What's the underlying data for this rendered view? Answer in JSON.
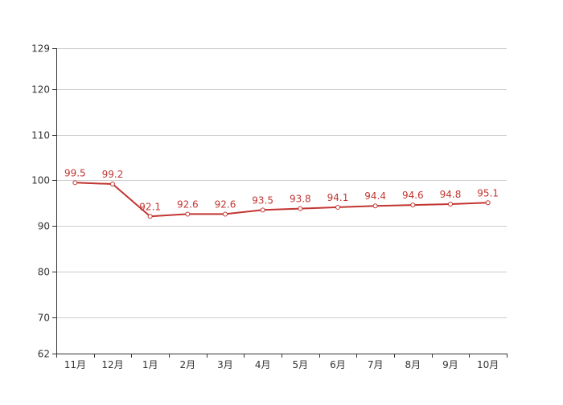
{
  "chart_data": {
    "type": "line",
    "title": "",
    "xlabel": "",
    "ylabel": "",
    "categories": [
      "11月",
      "12月",
      "1月",
      "2月",
      "3月",
      "4月",
      "5月",
      "6月",
      "7月",
      "8月",
      "9月",
      "10月"
    ],
    "series": [
      {
        "values": [
          99.5,
          99.2,
          92.1,
          92.6,
          92.6,
          93.5,
          93.8,
          94.1,
          94.4,
          94.6,
          94.8,
          95.1
        ],
        "labels": [
          "99.5",
          "99.2",
          "92.1",
          "92.6",
          "92.6",
          "93.5",
          "93.8",
          "94.1",
          "94.4",
          "94.6",
          "94.8",
          "95.1"
        ],
        "color": "#c23531"
      }
    ],
    "ylim": [
      62,
      129
    ],
    "yticks": [
      62,
      70,
      80,
      90,
      100,
      110,
      120,
      129
    ],
    "ytick_labels": [
      "62",
      "70",
      "80",
      "90",
      "100",
      "110",
      "120",
      "129"
    ],
    "grid": true,
    "legend": "none"
  }
}
